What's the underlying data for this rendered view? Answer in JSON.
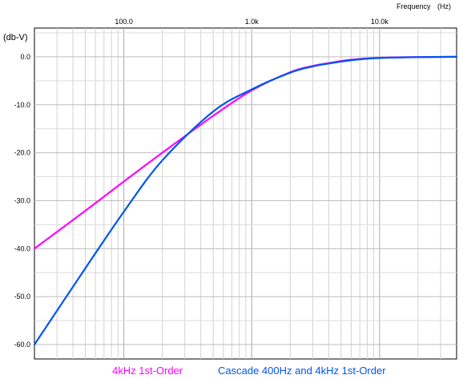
{
  "chart_data": {
    "type": "line",
    "title": "",
    "xlabel": "Frequency",
    "xunit": "(Hz)",
    "ylabel": "(db-V)",
    "xscale": "log",
    "xlim": [
      20,
      40000
    ],
    "ylim": [
      -63,
      6
    ],
    "xticks": [
      {
        "value": 100,
        "label": "100.0"
      },
      {
        "value": 1000,
        "label": "1.0k"
      },
      {
        "value": 10000,
        "label": "10.0k"
      }
    ],
    "yticks": [
      {
        "value": 0,
        "label": "0.0"
      },
      {
        "value": -10,
        "label": "-10.0"
      },
      {
        "value": -20,
        "label": "-20.0"
      },
      {
        "value": -30,
        "label": "-30.0"
      },
      {
        "value": -40,
        "label": "-40.0"
      },
      {
        "value": -50,
        "label": "-50.0"
      },
      {
        "value": -60,
        "label": "-60.0"
      }
    ],
    "grid": true,
    "legend_position": "bottom",
    "series": [
      {
        "name": "4kHz 1st-Order",
        "color": "#ff00ff",
        "x": [
          20,
          50,
          100,
          200,
          500,
          1000,
          2000,
          3000,
          4000,
          6000,
          10000,
          20000,
          40000
        ],
        "y": [
          -40.0,
          -32.1,
          -26.0,
          -20.0,
          -12.3,
          -7.0,
          -3.2,
          -1.9,
          -1.3,
          -0.6,
          -0.2,
          -0.05,
          0.0
        ]
      },
      {
        "name": "Cascade 400Hz and 4kHz 1st-Order",
        "color": "#0055ee",
        "x": [
          20,
          50,
          100,
          200,
          500,
          1000,
          2000,
          3000,
          4000,
          6000,
          10000,
          20000,
          40000
        ],
        "y": [
          -60.0,
          -44.1,
          -32.3,
          -21.6,
          -11.4,
          -6.8,
          -3.3,
          -2.0,
          -1.4,
          -0.7,
          -0.25,
          -0.06,
          0.0
        ]
      }
    ]
  }
}
